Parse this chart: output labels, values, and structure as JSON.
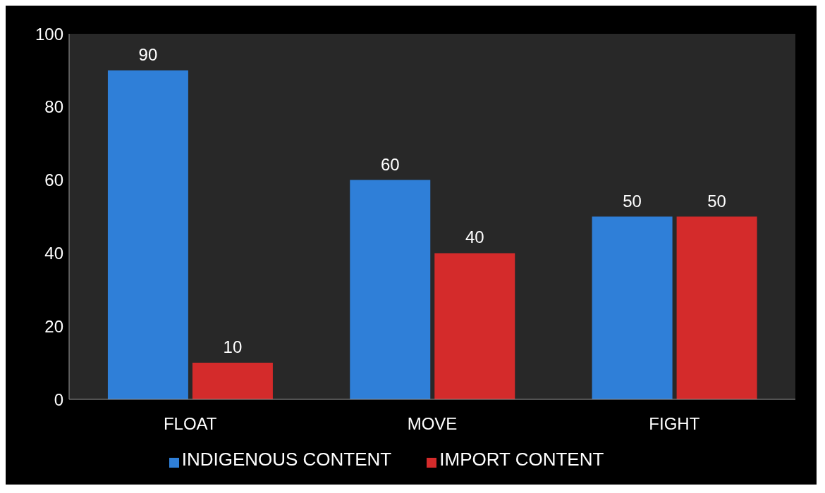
{
  "chart_data": {
    "type": "bar",
    "categories": [
      "FLOAT",
      "MOVE",
      "FIGHT"
    ],
    "series": [
      {
        "name": "INDIGENOUS CONTENT",
        "color": "#2f7fd8",
        "values": [
          90,
          60,
          50
        ]
      },
      {
        "name": "IMPORT CONTENT",
        "color": "#d42b2b",
        "values": [
          10,
          40,
          50
        ]
      }
    ],
    "ylim": [
      0,
      100
    ],
    "yticks": [
      0,
      20,
      40,
      60,
      80,
      100
    ],
    "grid": false,
    "legend": "bottom",
    "data_labels": true
  }
}
